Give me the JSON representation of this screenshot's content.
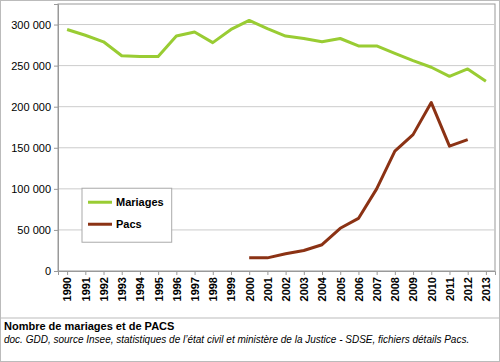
{
  "chart_data": {
    "type": "line",
    "title": "Nombre de mariages et de PACS",
    "subtitle": "doc. GDD, source Insee, statistiques de l’état civil et ministère de la Justice - SDSE, fichiers détails Pacs.",
    "categories": [
      "1990",
      "1991",
      "1992",
      "1993",
      "1994",
      "1995",
      "1996",
      "1997",
      "1998",
      "1999",
      "2000",
      "2001",
      "2002",
      "2003",
      "2004",
      "2005",
      "2006",
      "2007",
      "2008",
      "2009",
      "2010",
      "2011",
      "2012",
      "2013"
    ],
    "series": [
      {
        "name": "Mariages",
        "color": "#99cc33",
        "values": [
          294000,
          287000,
          279000,
          262000,
          261000,
          261000,
          286000,
          291000,
          278000,
          294000,
          305000,
          295000,
          286000,
          283000,
          279000,
          283000,
          274000,
          274000,
          265000,
          256000,
          248000,
          237000,
          246000,
          231000
        ]
      },
      {
        "name": "Pacs",
        "color": "#8b3214",
        "values": [
          null,
          null,
          null,
          null,
          null,
          null,
          null,
          null,
          null,
          null,
          16000,
          16000,
          21000,
          25000,
          32000,
          52000,
          64000,
          100000,
          146000,
          166000,
          205000,
          152000,
          160000,
          null
        ]
      }
    ],
    "ylim": [
      0,
      325000
    ],
    "yticks": [
      0,
      {
        "value": 50000,
        "label": "50 000"
      },
      {
        "value": 100000,
        "label": "100 000"
      },
      {
        "value": 150000,
        "label": "150 000"
      },
      {
        "value": 200000,
        "label": "200 000"
      },
      {
        "value": 250000,
        "label": "250 000"
      },
      {
        "value": 300000,
        "label": "300 000"
      }
    ],
    "grid": true,
    "legend": "left"
  }
}
